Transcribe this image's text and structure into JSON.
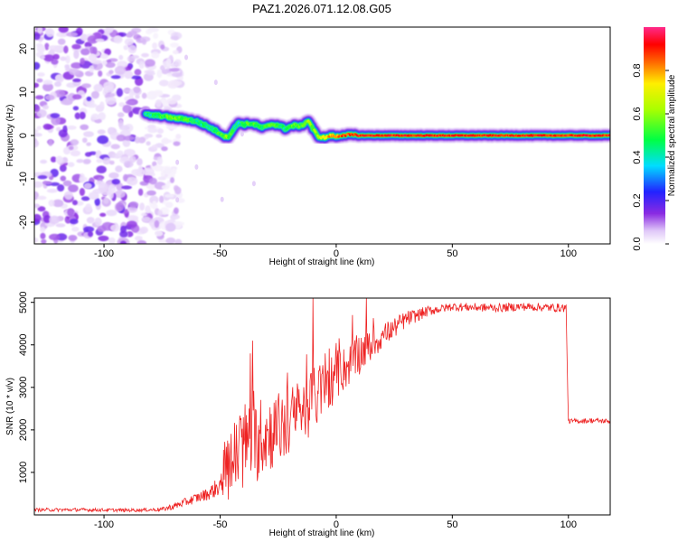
{
  "figure": {
    "title": "PAZ1.2026.071.12.08.G05"
  },
  "chart_data": [
    {
      "type": "heatmap",
      "name": "spectrogram",
      "title": "PAZ1.2026.071.12.08.G05",
      "xlabel": "Height of straight line (km)",
      "ylabel": "Frequency (Hz)",
      "xlim": [
        -130,
        118
      ],
      "ylim": [
        -25,
        25
      ],
      "xticks": [
        -100,
        -50,
        0,
        50,
        100
      ],
      "xtick_labels": [
        "-100",
        "-50",
        "0",
        "50",
        "100"
      ],
      "yticks": [
        -20,
        -10,
        0,
        10,
        20
      ],
      "ytick_labels": [
        "-20",
        "-10",
        "0",
        "10",
        "20"
      ],
      "colorbar": {
        "label": "Normalized spectral amplitude",
        "range": [
          0,
          1
        ],
        "ticks": [
          0.0,
          0.2,
          0.4,
          0.6,
          0.8
        ],
        "tick_labels": [
          "0.0",
          "0.2",
          "0.4",
          "0.6",
          "0.8"
        ],
        "colormap": "rainbow (white-violet-blue-cyan-green-yellow-orange-red-pink)"
      },
      "noise_region": {
        "x_range": [
          -130,
          -73
        ],
        "freq_range": [
          -25,
          25
        ],
        "typical_amplitude": 0.1
      },
      "ridge": {
        "description": "dominant frequency track",
        "x": [
          -82,
          -75,
          -70,
          -65,
          -60,
          -55,
          -50,
          -47,
          -44,
          -42,
          -40,
          -37,
          -35,
          -32,
          -30,
          -28,
          -25,
          -22,
          -20,
          -18,
          -15,
          -12,
          -10,
          -8,
          -5,
          -2,
          0,
          3,
          6,
          10,
          20,
          40,
          60,
          80,
          100,
          118
        ],
        "freq": [
          4.8,
          4.5,
          4.0,
          3.8,
          3.2,
          2.0,
          0.5,
          -0.5,
          1.5,
          3.0,
          2.5,
          2.8,
          2.5,
          1.8,
          2.0,
          2.6,
          2.4,
          1.6,
          2.0,
          2.3,
          2.2,
          3.5,
          1.5,
          -0.2,
          -0.5,
          0.0,
          -0.3,
          0.2,
          0.1,
          0.0,
          0.0,
          0.0,
          0.0,
          0.0,
          0.0,
          0.0
        ],
        "amplitude": [
          0.4,
          0.5,
          0.55,
          0.55,
          0.45,
          0.4,
          0.5,
          0.6,
          0.45,
          0.4,
          0.45,
          0.55,
          0.5,
          0.45,
          0.5,
          0.55,
          0.5,
          0.45,
          0.5,
          0.55,
          0.5,
          0.6,
          0.55,
          0.6,
          0.7,
          0.8,
          0.8,
          0.85,
          0.88,
          0.9,
          0.9,
          0.9,
          0.9,
          0.9,
          0.9,
          0.9
        ]
      }
    },
    {
      "type": "line",
      "name": "snr",
      "xlabel": "Height of straight line (km)",
      "ylabel": "SNR (10 * v/v)",
      "xlim": [
        -130,
        118
      ],
      "ylim": [
        0,
        5100
      ],
      "xticks": [
        -100,
        -50,
        0,
        50,
        100
      ],
      "xtick_labels": [
        "-100",
        "-50",
        "0",
        "50",
        "100"
      ],
      "yticks": [
        1000,
        2000,
        3000,
        4000,
        5000
      ],
      "ytick_labels": [
        "1000",
        "2000",
        "3000",
        "4000",
        "5000"
      ],
      "line_color": "#ee2222",
      "envelope": {
        "x": [
          -130,
          -110,
          -90,
          -80,
          -75,
          -70,
          -65,
          -60,
          -55,
          -50,
          -48,
          -45,
          -42,
          -40,
          -37,
          -35,
          -30,
          -25,
          -20,
          -15,
          -10,
          -5,
          0,
          5,
          10,
          15,
          20,
          25,
          30,
          35,
          40,
          45,
          50,
          60,
          70,
          80,
          90,
          99,
          100,
          110,
          118
        ],
        "mean": [
          120,
          120,
          110,
          120,
          130,
          200,
          300,
          400,
          500,
          700,
          1100,
          1200,
          1500,
          1600,
          1800,
          1700,
          1900,
          2000,
          2200,
          2400,
          2700,
          3000,
          3300,
          3500,
          3800,
          4000,
          4200,
          4400,
          4600,
          4700,
          4800,
          4850,
          4900,
          4880,
          4870,
          4900,
          4880,
          4870,
          2200,
          2220,
          2200
        ],
        "amp": [
          40,
          40,
          40,
          40,
          50,
          80,
          100,
          120,
          150,
          250,
          700,
          900,
          1000,
          1100,
          1000,
          1000,
          900,
          900,
          850,
          800,
          750,
          700,
          600,
          500,
          500,
          400,
          300,
          250,
          200,
          150,
          120,
          100,
          100,
          100,
          100,
          100,
          100,
          100,
          60,
          60,
          60
        ]
      },
      "spikes": [
        {
          "x": -36,
          "y": 4100
        },
        {
          "x": -37,
          "y": 3800
        },
        {
          "x": -10,
          "y": 5100
        },
        {
          "x": 13,
          "y": 5100
        },
        {
          "x": 7,
          "y": 4700
        }
      ]
    }
  ]
}
